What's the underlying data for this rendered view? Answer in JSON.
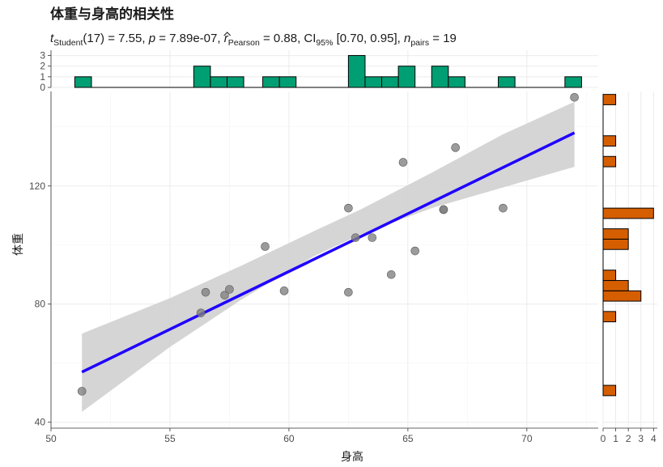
{
  "title": "体重与身高的相关性",
  "subtitle": {
    "stat_symbol": "t",
    "stat_sub": "Student",
    "df_text": "(17) = 7.55, ",
    "p_symbol": "p",
    "p_text": " = 7.89e-07, ",
    "r_symbol": "r",
    "r_sub": "Pearson",
    "r_text": " = 0.88, CI",
    "ci_sub": "95%",
    "ci_text": " [0.70, 0.95], ",
    "n_symbol": "n",
    "n_sub": "pairs",
    "n_text": " = 19"
  },
  "colors": {
    "x_hist_fill": "#009e73",
    "y_hist_fill": "#d55e00",
    "regression_line": "#1f00ff",
    "ci_band": "#d3d3d3",
    "points": "#7f7f7f"
  },
  "chart_data": {
    "type": "scatter",
    "xlabel": "身高",
    "ylabel": "体重",
    "xlim": [
      50,
      73
    ],
    "ylim": [
      38,
      152
    ],
    "x_ticks": [
      "50",
      "55",
      "60",
      "65",
      "70"
    ],
    "y_ticks": [
      "40",
      "80",
      "120"
    ],
    "grid": true,
    "points": [
      {
        "x": 51.3,
        "y": 50.5
      },
      {
        "x": 56.3,
        "y": 77.0
      },
      {
        "x": 56.5,
        "y": 84.0
      },
      {
        "x": 57.3,
        "y": 83.0
      },
      {
        "x": 57.5,
        "y": 85.0
      },
      {
        "x": 59.0,
        "y": 99.5
      },
      {
        "x": 59.8,
        "y": 84.5
      },
      {
        "x": 62.5,
        "y": 84.0
      },
      {
        "x": 62.5,
        "y": 112.5
      },
      {
        "x": 62.8,
        "y": 102.5
      },
      {
        "x": 63.5,
        "y": 102.5
      },
      {
        "x": 64.3,
        "y": 90.0
      },
      {
        "x": 64.8,
        "y": 128.0
      },
      {
        "x": 65.3,
        "y": 98.0
      },
      {
        "x": 66.5,
        "y": 112.0
      },
      {
        "x": 66.5,
        "y": 112.0
      },
      {
        "x": 67.0,
        "y": 133.0
      },
      {
        "x": 69.0,
        "y": 112.5
      },
      {
        "x": 72.0,
        "y": 150.0
      }
    ],
    "regression": {
      "x": [
        51.3,
        72.0
      ],
      "y": [
        57.0,
        138.0
      ]
    },
    "confidence_band": [
      {
        "x": 51.3,
        "lower": 43.5,
        "upper": 70.0
      },
      {
        "x": 55.0,
        "lower": 65.5,
        "upper": 82.0
      },
      {
        "x": 58.0,
        "lower": 81.5,
        "upper": 93.0
      },
      {
        "x": 61.0,
        "lower": 96.0,
        "upper": 104.5
      },
      {
        "x": 63.0,
        "lower": 103.5,
        "upper": 112.0
      },
      {
        "x": 66.0,
        "lower": 112.5,
        "upper": 124.5
      },
      {
        "x": 69.0,
        "lower": 119.5,
        "upper": 137.5
      },
      {
        "x": 72.0,
        "lower": 126.5,
        "upper": 148.5
      }
    ],
    "x_histogram": {
      "y_ticks": [
        "0",
        "1",
        "2",
        "3"
      ],
      "ymax": 3.5,
      "bins": [
        {
          "x0": 51.0,
          "x1": 51.7,
          "count": 1
        },
        {
          "x0": 56.0,
          "x1": 56.7,
          "count": 2
        },
        {
          "x0": 56.7,
          "x1": 57.4,
          "count": 1
        },
        {
          "x0": 57.4,
          "x1": 58.1,
          "count": 1
        },
        {
          "x0": 58.9,
          "x1": 59.6,
          "count": 1
        },
        {
          "x0": 59.6,
          "x1": 60.3,
          "count": 1
        },
        {
          "x0": 62.5,
          "x1": 63.2,
          "count": 3
        },
        {
          "x0": 63.2,
          "x1": 63.9,
          "count": 1
        },
        {
          "x0": 63.9,
          "x1": 64.6,
          "count": 1
        },
        {
          "x0": 64.6,
          "x1": 65.3,
          "count": 2
        },
        {
          "x0": 66.0,
          "x1": 66.7,
          "count": 2
        },
        {
          "x0": 66.7,
          "x1": 67.4,
          "count": 1
        },
        {
          "x0": 68.8,
          "x1": 69.5,
          "count": 1
        },
        {
          "x0": 71.6,
          "x1": 72.3,
          "count": 1
        }
      ]
    },
    "y_histogram": {
      "x_ticks": [
        "0",
        "1",
        "2",
        "3",
        "4"
      ],
      "xmax": 4.3,
      "bins": [
        {
          "y0": 49.0,
          "y1": 52.5,
          "count": 1
        },
        {
          "y0": 74.0,
          "y1": 77.5,
          "count": 1
        },
        {
          "y0": 81.0,
          "y1": 84.5,
          "count": 3
        },
        {
          "y0": 84.5,
          "y1": 88.0,
          "count": 2
        },
        {
          "y0": 88.0,
          "y1": 91.5,
          "count": 1
        },
        {
          "y0": 98.5,
          "y1": 102.0,
          "count": 2
        },
        {
          "y0": 102.0,
          "y1": 105.5,
          "count": 2
        },
        {
          "y0": 109.0,
          "y1": 112.5,
          "count": 4
        },
        {
          "y0": 126.5,
          "y1": 130.0,
          "count": 1
        },
        {
          "y0": 133.5,
          "y1": 137.0,
          "count": 1
        },
        {
          "y0": 147.5,
          "y1": 151.0,
          "count": 1
        }
      ]
    }
  }
}
